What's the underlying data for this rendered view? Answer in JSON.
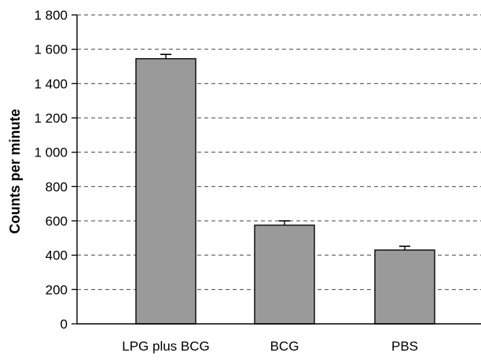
{
  "chart_data": {
    "type": "bar",
    "categories": [
      "LPG plus BCG",
      "BCG",
      "PBS"
    ],
    "values": [
      1545,
      575,
      430
    ],
    "error": [
      25,
      25,
      22
    ],
    "title": "",
    "xlabel": "",
    "ylabel": "Counts per minute",
    "ylim": [
      0,
      1800
    ],
    "yticks": [
      0,
      200,
      400,
      600,
      800,
      1000,
      1200,
      1400,
      1600,
      1800
    ],
    "ytick_labels": [
      "0",
      "200",
      "400",
      "600",
      "800",
      "1 000",
      "1 200",
      "1 400",
      "1 600",
      "1 800"
    ],
    "grid": "horizontal-dashed",
    "colors": {
      "bar": "#9a9a9a",
      "bar_edge": "#111111",
      "grid": "#444444",
      "axis": "#000000"
    }
  }
}
